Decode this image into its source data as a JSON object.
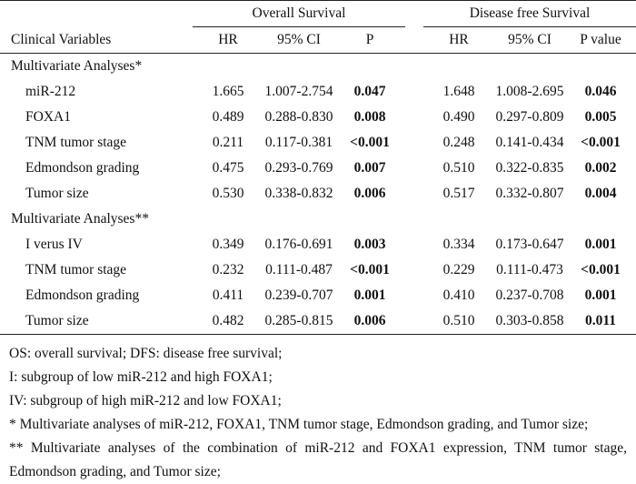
{
  "header": {
    "group_os": "Overall Survival",
    "group_dfs": "Disease free Survival",
    "col_variable": "Clinical Variables",
    "col_hr_os": "HR",
    "col_ci_os": "95% CI",
    "col_p_os": "P",
    "col_hr_dfs": "HR",
    "col_ci_dfs": "95% CI",
    "col_p_dfs": "P value"
  },
  "sections": [
    {
      "title": "Multivariate Analyses*",
      "rows": [
        {
          "label": "miR-212",
          "hr_os": "1.665",
          "ci_os": "1.007-2.754",
          "p_os": "0.047",
          "hr_dfs": "1.648",
          "ci_dfs": "1.008-2.695",
          "p_dfs": "0.046"
        },
        {
          "label": "FOXA1",
          "hr_os": "0.489",
          "ci_os": "0.288-0.830",
          "p_os": "0.008",
          "hr_dfs": "0.490",
          "ci_dfs": "0.297-0.809",
          "p_dfs": "0.005"
        },
        {
          "label": "TNM tumor stage",
          "hr_os": "0.211",
          "ci_os": "0.117-0.381",
          "p_os": "<0.001",
          "hr_dfs": "0.248",
          "ci_dfs": "0.141-0.434",
          "p_dfs": "<0.001"
        },
        {
          "label": "Edmondson grading",
          "hr_os": "0.475",
          "ci_os": "0.293-0.769",
          "p_os": "0.007",
          "hr_dfs": "0.510",
          "ci_dfs": "0.322-0.835",
          "p_dfs": "0.002"
        },
        {
          "label": "Tumor size",
          "hr_os": "0.530",
          "ci_os": "0.338-0.832",
          "p_os": "0.006",
          "hr_dfs": "0.517",
          "ci_dfs": "0.332-0.807",
          "p_dfs": "0.004"
        }
      ]
    },
    {
      "title": "Multivariate Analyses**",
      "rows": [
        {
          "label": "I verus IV",
          "hr_os": "0.349",
          "ci_os": "0.176-0.691",
          "p_os": "0.003",
          "hr_dfs": "0.334",
          "ci_dfs": "0.173-0.647",
          "p_dfs": "0.001"
        },
        {
          "label": "TNM tumor stage",
          "hr_os": "0.232",
          "ci_os": "0.111-0.487",
          "p_os": "<0.001",
          "hr_dfs": "0.229",
          "ci_dfs": "0.111-0.473",
          "p_dfs": "<0.001"
        },
        {
          "label": "Edmondson grading",
          "hr_os": "0.411",
          "ci_os": "0.239-0.707",
          "p_os": "0.001",
          "hr_dfs": "0.410",
          "ci_dfs": "0.237-0.708",
          "p_dfs": "0.001"
        },
        {
          "label": "Tumor size",
          "hr_os": "0.482",
          "ci_os": "0.285-0.815",
          "p_os": "0.006",
          "hr_dfs": "0.510",
          "ci_dfs": "0.303-0.858",
          "p_dfs": "0.011"
        }
      ]
    }
  ],
  "notes": [
    "OS: overall survival; DFS: disease free survival;",
    "I: subgroup of low miR-212 and high FOXA1;",
    "IV: subgroup of high miR-212 and low FOXA1;",
    "* Multivariate analyses of miR-212, FOXA1, TNM tumor stage, Edmondson grading, and Tumor size;",
    "** Multivariate analyses of the combination of miR-212 and FOXA1 expression, TNM tumor stage, Edmondson grading, and Tumor size;"
  ]
}
